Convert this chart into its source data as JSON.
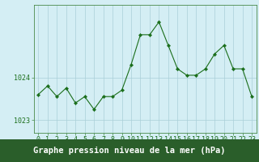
{
  "x": [
    0,
    1,
    2,
    3,
    4,
    5,
    6,
    7,
    8,
    9,
    10,
    11,
    12,
    13,
    14,
    15,
    16,
    17,
    18,
    19,
    20,
    21,
    22,
    23
  ],
  "y": [
    1023.6,
    1023.8,
    1023.55,
    1023.75,
    1023.4,
    1023.55,
    1023.25,
    1023.55,
    1023.55,
    1023.7,
    1024.3,
    1025.0,
    1025.0,
    1025.3,
    1024.75,
    1024.2,
    1024.05,
    1024.05,
    1024.2,
    1024.55,
    1024.75,
    1024.2,
    1024.2,
    1023.55
  ],
  "line_color": "#1a6e1a",
  "marker_color": "#1a6e1a",
  "bg_color": "#d4eef4",
  "grid_color": "#aacfd8",
  "axis_color": "#1a6e1a",
  "ylabel_left_ticks": [
    1023,
    1024
  ],
  "xlabel_label": "Graphe pression niveau de la mer (hPa)",
  "ylim": [
    1022.7,
    1025.7
  ],
  "xlim": [
    -0.5,
    23.5
  ],
  "label_fontsize": 6,
  "xlabel_fontsize": 7.5,
  "tick_label_color": "#1a6e1a",
  "bottom_bar_color": "#2a5e2a",
  "spine_color": "#4a8a4a"
}
